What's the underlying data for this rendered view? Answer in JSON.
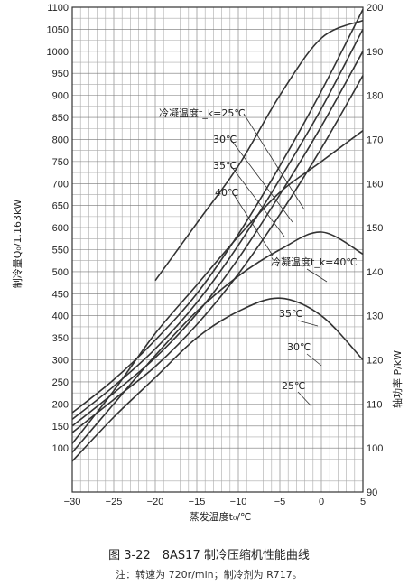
{
  "chart_data": {
    "type": "line",
    "title": "图 3-22　8AS17 制冷压缩机性能曲线",
    "note": "注：转速为 720r/min；制冷剂为 R717。",
    "xlabel": "蒸发温度t₀/℃",
    "ylabel_left": "制冷量Q₀/1.163kW",
    "ylabel_right": "轴功率 P/kW",
    "xlim": [
      -30,
      5
    ],
    "ylim_left": [
      0,
      1100
    ],
    "ylim_right": [
      90,
      200
    ],
    "x_ticks": [
      "−30",
      "−25",
      "−20",
      "−15",
      "−10",
      "−5",
      "0",
      "5"
    ],
    "y_ticks_left": [
      "100",
      "150",
      "200",
      "250",
      "300",
      "350",
      "400",
      "450",
      "500",
      "550",
      "600",
      "650",
      "700",
      "750",
      "800",
      "850",
      "900",
      "950",
      "1000",
      "1050",
      "1100"
    ],
    "y_ticks_right": [
      "90",
      "100",
      "110",
      "120",
      "130",
      "140",
      "150",
      "160",
      "170",
      "180",
      "190",
      "200"
    ],
    "grid": true,
    "capacity_series": [
      {
        "name": "冷凝温度t_k=25℃",
        "axis": "left",
        "x": [
          -30,
          -25,
          -20,
          -15,
          -10,
          -5,
          0,
          5
        ],
        "y": [
          180,
          255,
          345,
          450,
          585,
          740,
          910,
          1095
        ]
      },
      {
        "name": "30℃",
        "axis": "left",
        "x": [
          -30,
          -25,
          -20,
          -15,
          -10,
          -5,
          0,
          5
        ],
        "y": [
          165,
          240,
          325,
          430,
          560,
          710,
          870,
          1050
        ]
      },
      {
        "name": "35℃",
        "axis": "left",
        "x": [
          -30,
          -25,
          -20,
          -15,
          -10,
          -5,
          0,
          5
        ],
        "y": [
          150,
          225,
          305,
          405,
          530,
          675,
          830,
          1000
        ]
      },
      {
        "name": "40℃",
        "axis": "left",
        "x": [
          -30,
          -25,
          -20,
          -15,
          -10,
          -5,
          0,
          5
        ],
        "y": [
          135,
          210,
          285,
          380,
          495,
          630,
          780,
          945
        ]
      }
    ],
    "power_series": [
      {
        "name": "冷凝温度t_k=40℃",
        "axis": "right",
        "x": [
          -20,
          -15,
          -10,
          -5,
          0,
          5
        ],
        "y": [
          138,
          151,
          164,
          180,
          193,
          197
        ]
      },
      {
        "name": "35℃",
        "axis": "right",
        "x": [
          -30,
          -25,
          -20,
          -15,
          -10,
          -5,
          0,
          5
        ],
        "y": [
          101,
          113,
          126,
          137,
          148,
          158,
          165,
          172
        ]
      },
      {
        "name": "30℃",
        "axis": "right",
        "x": [
          -30,
          -25,
          -20,
          -15,
          -10,
          -5,
          0,
          5
        ],
        "y": [
          99,
          110,
          121,
          131,
          139,
          145,
          149,
          144
        ]
      },
      {
        "name": "25℃",
        "axis": "right",
        "x": [
          -30,
          -25,
          -20,
          -15,
          -10,
          -5,
          0,
          5
        ],
        "y": [
          97,
          107,
          116,
          125,
          131,
          134,
          130,
          120
        ]
      }
    ]
  }
}
